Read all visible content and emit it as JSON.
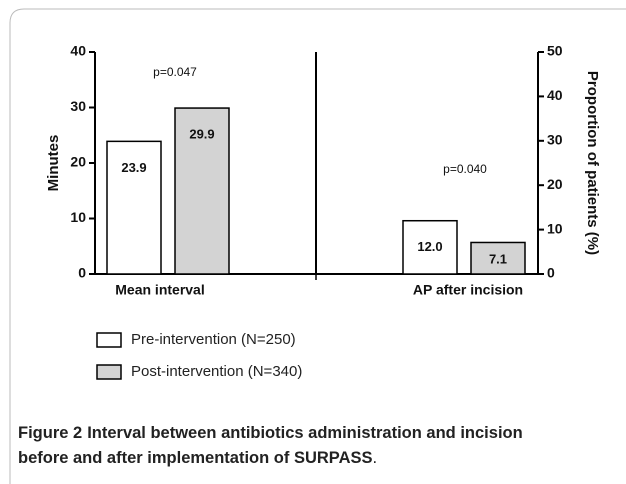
{
  "chart_data": {
    "type": "bar",
    "categories": [
      "Mean interval",
      "AP after incision"
    ],
    "category_axes": [
      "y",
      "y2"
    ],
    "series": [
      {
        "name": "Pre-intervention (N=250)",
        "color": "#ffffff",
        "values": [
          23.9,
          12.0
        ],
        "value_labels": [
          "23.9",
          "12.0"
        ]
      },
      {
        "name": "Post-intervention (N=340)",
        "color": "#d3d3d3",
        "values": [
          29.9,
          7.1
        ],
        "value_labels": [
          "29.9",
          "7.1"
        ]
      }
    ],
    "ylabel": "Minutes",
    "ylim": [
      0,
      40
    ],
    "yticks": [
      0,
      10,
      20,
      30,
      40
    ],
    "y2label": "Proportion of patients (%)",
    "y2lim": [
      0,
      50
    ],
    "y2ticks": [
      0,
      10,
      20,
      30,
      40,
      50
    ],
    "annotations": [
      "p=0.047",
      "p=0.040"
    ],
    "caption_label": "Figure 2",
    "caption": [
      "Interval between antibiotics administration and incision",
      "before and after implementation of SURPASS"
    ],
    "caption_end": "."
  }
}
